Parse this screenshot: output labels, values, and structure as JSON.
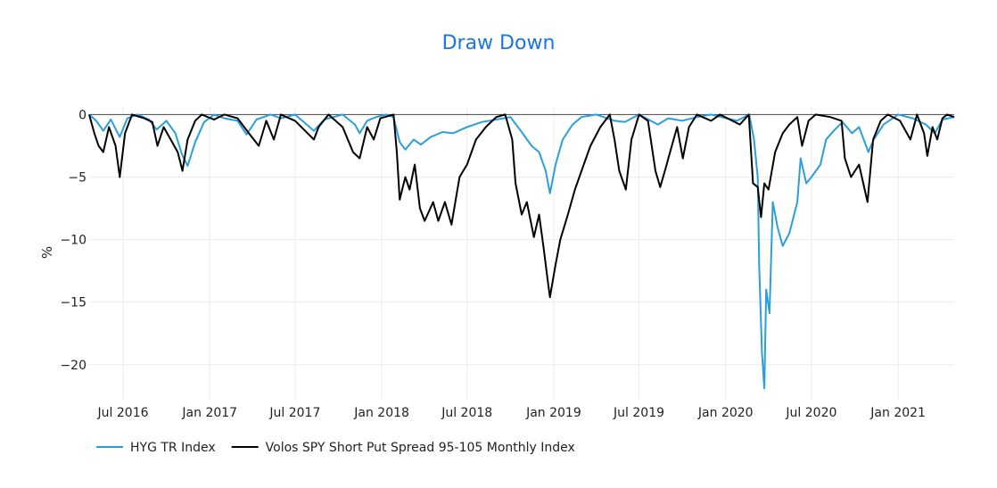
{
  "chart_data": {
    "type": "line",
    "title": "Draw Down",
    "xlabel": "",
    "ylabel": "%",
    "x_range": [
      "2016-04-20",
      "2021-04-30"
    ],
    "ylim": [
      -22.8,
      0.6
    ],
    "y_ticks": [
      0,
      -5,
      -10,
      -15,
      -20
    ],
    "y_tick_labels": [
      "0",
      "−5",
      "−10",
      "−15",
      "−20"
    ],
    "x_ticks": [
      "2016-07-01",
      "2017-01-01",
      "2017-07-01",
      "2018-01-01",
      "2018-07-01",
      "2019-01-01",
      "2019-07-01",
      "2020-01-01",
      "2020-07-01",
      "2021-01-01"
    ],
    "x_tick_labels": [
      "Jul 2016",
      "Jan 2017",
      "Jul 2017",
      "Jan 2018",
      "Jul 2018",
      "Jan 2019",
      "Jul 2019",
      "Jan 2020",
      "Jul 2020",
      "Jan 2021"
    ],
    "grid": true,
    "legend_position": "bottom-left",
    "series": [
      {
        "name": "HYG TR Index",
        "color": "#2b9fd9",
        "points": [
          [
            "2016-04-20",
            0
          ],
          [
            "2016-05-05",
            -0.5
          ],
          [
            "2016-05-20",
            -1.3
          ],
          [
            "2016-06-05",
            -0.4
          ],
          [
            "2016-06-24",
            -1.8
          ],
          [
            "2016-07-10",
            -0.3
          ],
          [
            "2016-08-01",
            0
          ],
          [
            "2016-08-25",
            -0.4
          ],
          [
            "2016-09-10",
            -1.2
          ],
          [
            "2016-10-01",
            -0.5
          ],
          [
            "2016-10-20",
            -1.5
          ],
          [
            "2016-11-03",
            -3.2
          ],
          [
            "2016-11-15",
            -4.1
          ],
          [
            "2016-12-01",
            -2.2
          ],
          [
            "2016-12-20",
            -0.6
          ],
          [
            "2017-01-10",
            0
          ],
          [
            "2017-02-01",
            -0.3
          ],
          [
            "2017-03-01",
            -0.5
          ],
          [
            "2017-03-20",
            -1.6
          ],
          [
            "2017-04-10",
            -0.4
          ],
          [
            "2017-05-10",
            0
          ],
          [
            "2017-06-01",
            -0.3
          ],
          [
            "2017-07-01",
            0
          ],
          [
            "2017-08-10",
            -1.3
          ],
          [
            "2017-09-01",
            -0.4
          ],
          [
            "2017-10-10",
            0
          ],
          [
            "2017-11-05",
            -0.8
          ],
          [
            "2017-11-15",
            -1.5
          ],
          [
            "2017-12-01",
            -0.5
          ],
          [
            "2017-12-20",
            -0.2
          ],
          [
            "2018-01-10",
            0
          ],
          [
            "2018-01-26",
            -0.2
          ],
          [
            "2018-02-08",
            -2.2
          ],
          [
            "2018-02-20",
            -2.8
          ],
          [
            "2018-03-10",
            -2.0
          ],
          [
            "2018-03-25",
            -2.4
          ],
          [
            "2018-04-15",
            -1.8
          ],
          [
            "2018-05-10",
            -1.4
          ],
          [
            "2018-06-01",
            -1.5
          ],
          [
            "2018-07-01",
            -1.0
          ],
          [
            "2018-08-01",
            -0.6
          ],
          [
            "2018-09-01",
            -0.4
          ],
          [
            "2018-10-01",
            -0.2
          ],
          [
            "2018-10-25",
            -1.4
          ],
          [
            "2018-11-15",
            -2.5
          ],
          [
            "2018-12-01",
            -3.0
          ],
          [
            "2018-12-15",
            -4.5
          ],
          [
            "2018-12-24",
            -6.3
          ],
          [
            "2019-01-05",
            -4.0
          ],
          [
            "2019-01-20",
            -2.0
          ],
          [
            "2019-02-10",
            -0.8
          ],
          [
            "2019-03-01",
            -0.2
          ],
          [
            "2019-04-01",
            0
          ],
          [
            "2019-05-10",
            -0.5
          ],
          [
            "2019-06-01",
            -0.6
          ],
          [
            "2019-07-01",
            0
          ],
          [
            "2019-08-10",
            -0.8
          ],
          [
            "2019-09-01",
            -0.3
          ],
          [
            "2019-10-01",
            -0.5
          ],
          [
            "2019-11-01",
            -0.2
          ],
          [
            "2019-12-01",
            0
          ],
          [
            "2020-01-25",
            -0.5
          ],
          [
            "2020-02-20",
            0
          ],
          [
            "2020-03-01",
            -2.0
          ],
          [
            "2020-03-09",
            -5.0
          ],
          [
            "2020-03-12",
            -12.0
          ],
          [
            "2020-03-18",
            -19.0
          ],
          [
            "2020-03-23",
            -21.9
          ],
          [
            "2020-03-27",
            -14.0
          ],
          [
            "2020-04-03",
            -15.9
          ],
          [
            "2020-04-10",
            -7.0
          ],
          [
            "2020-04-20",
            -9.0
          ],
          [
            "2020-05-01",
            -10.5
          ],
          [
            "2020-05-15",
            -9.5
          ],
          [
            "2020-06-01",
            -7.0
          ],
          [
            "2020-06-08",
            -3.5
          ],
          [
            "2020-06-20",
            -5.5
          ],
          [
            "2020-07-01",
            -5.0
          ],
          [
            "2020-07-20",
            -4.0
          ],
          [
            "2020-08-01",
            -2.0
          ],
          [
            "2020-08-20",
            -1.2
          ],
          [
            "2020-09-05",
            -0.6
          ],
          [
            "2020-09-25",
            -1.5
          ],
          [
            "2020-10-10",
            -1.0
          ],
          [
            "2020-10-30",
            -3.0
          ],
          [
            "2020-11-10",
            -2.0
          ],
          [
            "2020-12-01",
            -0.8
          ],
          [
            "2021-01-01",
            0
          ],
          [
            "2021-02-01",
            -0.3
          ],
          [
            "2021-03-01",
            -0.8
          ],
          [
            "2021-03-20",
            -1.5
          ],
          [
            "2021-04-05",
            -0.4
          ],
          [
            "2021-04-30",
            -0.2
          ]
        ]
      },
      {
        "name": "Volos SPY Short Put Spread 95-105 Monthly Index",
        "color": "#000000",
        "points": [
          [
            "2016-04-20",
            0
          ],
          [
            "2016-05-01",
            -1.5
          ],
          [
            "2016-05-10",
            -2.5
          ],
          [
            "2016-05-20",
            -3.0
          ],
          [
            "2016-06-01",
            -1.0
          ],
          [
            "2016-06-15",
            -2.5
          ],
          [
            "2016-06-24",
            -5.0
          ],
          [
            "2016-07-05",
            -1.5
          ],
          [
            "2016-07-20",
            0
          ],
          [
            "2016-08-15",
            -0.3
          ],
          [
            "2016-09-01",
            -0.6
          ],
          [
            "2016-09-12",
            -2.5
          ],
          [
            "2016-09-25",
            -1.0
          ],
          [
            "2016-10-10",
            -2.0
          ],
          [
            "2016-10-25",
            -3.0
          ],
          [
            "2016-11-04",
            -4.5
          ],
          [
            "2016-11-15",
            -2.0
          ],
          [
            "2016-12-01",
            -0.5
          ],
          [
            "2016-12-15",
            0
          ],
          [
            "2017-01-10",
            -0.4
          ],
          [
            "2017-02-01",
            0
          ],
          [
            "2017-03-01",
            -0.3
          ],
          [
            "2017-03-25",
            -1.5
          ],
          [
            "2017-04-15",
            -2.5
          ],
          [
            "2017-05-01",
            -0.5
          ],
          [
            "2017-05-17",
            -2.0
          ],
          [
            "2017-06-01",
            0
          ],
          [
            "2017-07-01",
            -0.5
          ],
          [
            "2017-08-10",
            -2.0
          ],
          [
            "2017-08-20",
            -1.0
          ],
          [
            "2017-09-10",
            0
          ],
          [
            "2017-10-10",
            -1.0
          ],
          [
            "2017-11-01",
            -3.0
          ],
          [
            "2017-11-15",
            -3.5
          ],
          [
            "2017-12-01",
            -1.0
          ],
          [
            "2017-12-15",
            -2.0
          ],
          [
            "2017-12-29",
            -0.3
          ],
          [
            "2018-01-26",
            0
          ],
          [
            "2018-02-02",
            -3.0
          ],
          [
            "2018-02-08",
            -6.8
          ],
          [
            "2018-02-20",
            -5.0
          ],
          [
            "2018-03-01",
            -6.0
          ],
          [
            "2018-03-12",
            -4.0
          ],
          [
            "2018-03-23",
            -7.5
          ],
          [
            "2018-04-02",
            -8.5
          ],
          [
            "2018-04-20",
            -7.0
          ],
          [
            "2018-05-01",
            -8.5
          ],
          [
            "2018-05-15",
            -7.0
          ],
          [
            "2018-05-29",
            -8.8
          ],
          [
            "2018-06-15",
            -5.0
          ],
          [
            "2018-07-01",
            -4.0
          ],
          [
            "2018-07-20",
            -2.0
          ],
          [
            "2018-08-10",
            -1.0
          ],
          [
            "2018-09-01",
            -0.2
          ],
          [
            "2018-09-20",
            0
          ],
          [
            "2018-10-05",
            -2.0
          ],
          [
            "2018-10-12",
            -5.5
          ],
          [
            "2018-10-25",
            -8.0
          ],
          [
            "2018-11-05",
            -7.0
          ],
          [
            "2018-11-20",
            -9.8
          ],
          [
            "2018-12-01",
            -8.0
          ],
          [
            "2018-12-10",
            -10.5
          ],
          [
            "2018-12-20",
            -13.5
          ],
          [
            "2018-12-24",
            -14.6
          ],
          [
            "2019-01-05",
            -12.0
          ],
          [
            "2019-01-15",
            -10.0
          ],
          [
            "2019-01-31",
            -8.0
          ],
          [
            "2019-02-15",
            -6.0
          ],
          [
            "2019-03-01",
            -4.5
          ],
          [
            "2019-03-20",
            -2.5
          ],
          [
            "2019-04-10",
            -1.0
          ],
          [
            "2019-04-30",
            0
          ],
          [
            "2019-05-10",
            -2.0
          ],
          [
            "2019-05-20",
            -4.5
          ],
          [
            "2019-06-03",
            -6.0
          ],
          [
            "2019-06-15",
            -2.0
          ],
          [
            "2019-07-01",
            0
          ],
          [
            "2019-07-20",
            -0.5
          ],
          [
            "2019-08-05",
            -4.5
          ],
          [
            "2019-08-15",
            -5.8
          ],
          [
            "2019-08-25",
            -4.5
          ],
          [
            "2019-09-05",
            -3.0
          ],
          [
            "2019-09-20",
            -1.0
          ],
          [
            "2019-10-02",
            -3.5
          ],
          [
            "2019-10-15",
            -1.0
          ],
          [
            "2019-11-01",
            0
          ],
          [
            "2019-12-01",
            -0.5
          ],
          [
            "2019-12-20",
            0
          ],
          [
            "2020-01-31",
            -0.8
          ],
          [
            "2020-02-19",
            0
          ],
          [
            "2020-02-28",
            -5.5
          ],
          [
            "2020-03-09",
            -5.8
          ],
          [
            "2020-03-16",
            -8.2
          ],
          [
            "2020-03-23",
            -5.5
          ],
          [
            "2020-04-01",
            -6.0
          ],
          [
            "2020-04-15",
            -3.0
          ],
          [
            "2020-05-01",
            -1.5
          ],
          [
            "2020-05-15",
            -0.8
          ],
          [
            "2020-06-01",
            -0.2
          ],
          [
            "2020-06-11",
            -2.5
          ],
          [
            "2020-06-25",
            -0.5
          ],
          [
            "2020-07-10",
            0
          ],
          [
            "2020-08-10",
            -0.2
          ],
          [
            "2020-09-03",
            -0.5
          ],
          [
            "2020-09-10",
            -3.5
          ],
          [
            "2020-09-23",
            -5.0
          ],
          [
            "2020-10-10",
            -4.0
          ],
          [
            "2020-10-28",
            -7.0
          ],
          [
            "2020-11-09",
            -2.0
          ],
          [
            "2020-11-25",
            -0.5
          ],
          [
            "2020-12-10",
            0
          ],
          [
            "2021-01-05",
            -0.5
          ],
          [
            "2021-01-27",
            -2.0
          ],
          [
            "2021-02-10",
            0
          ],
          [
            "2021-02-25",
            -1.5
          ],
          [
            "2021-03-04",
            -3.3
          ],
          [
            "2021-03-15",
            -1.0
          ],
          [
            "2021-03-25",
            -2.0
          ],
          [
            "2021-04-05",
            -0.3
          ],
          [
            "2021-04-15",
            0
          ],
          [
            "2021-04-30",
            -0.2
          ]
        ]
      }
    ]
  }
}
